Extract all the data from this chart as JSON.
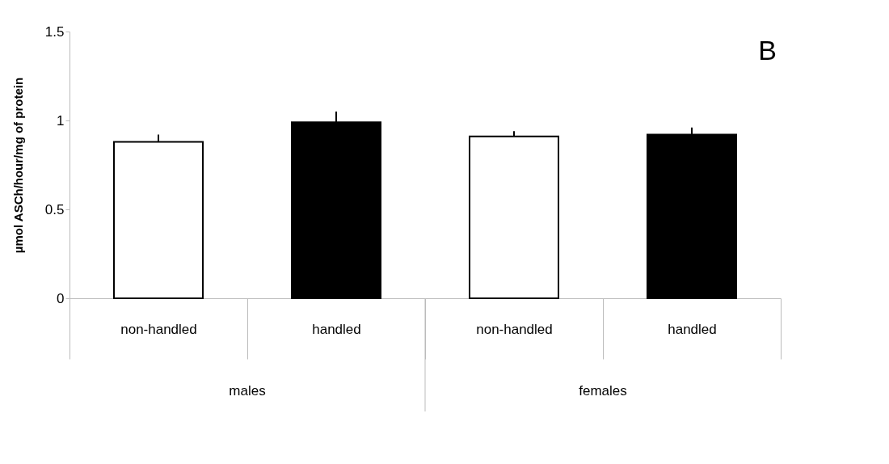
{
  "chart_data": {
    "type": "bar",
    "title": "B",
    "ylabel": "µmol ASCh/hour/mg of protein",
    "categories": [
      "non-handled",
      "handled",
      "non-handled",
      "handled"
    ],
    "values": [
      0.88,
      0.99,
      0.91,
      0.92
    ],
    "colors": [
      "#ffffff",
      "#000000",
      "#ffffff",
      "#000000"
    ],
    "errors": [
      [
        0.88,
        0.92
      ],
      [
        0.99,
        1.05
      ],
      [
        0.91,
        0.94
      ],
      [
        0.92,
        0.96
      ]
    ],
    "annotations": [
      "males",
      "females"
    ],
    "ylim": [
      0,
      1.5
    ],
    "yticks": [
      0,
      0.5,
      1,
      1.5
    ],
    "grid": false
  }
}
